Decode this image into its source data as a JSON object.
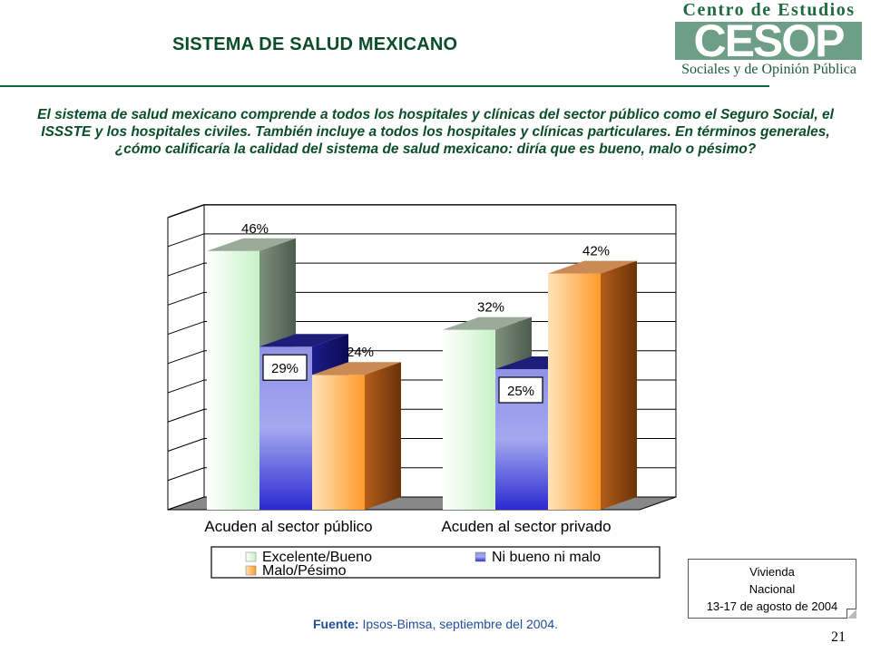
{
  "header": {
    "title": "SISTEMA DE SALUD MEXICANO",
    "logo": {
      "top": "Centro de Estudios",
      "mid": "CESOP",
      "bottom": "Sociales y de Opinión Pública"
    }
  },
  "question": "El sistema de salud mexicano comprende a todos los hospitales y clínicas del sector público como el Seguro Social, el ISSSTE y los hospitales civiles. También incluye a todos los hospitales y clínicas particulares. En términos generales, ¿cómo calificaría la calidad del sistema de salud mexicano: diría que es bueno, malo o pésimo?",
  "chart_data": {
    "type": "bar",
    "categories": [
      "Acuden al sector público",
      "Acuden al sector privado"
    ],
    "series": [
      {
        "name": "Excelente/Bueno",
        "values": [
          46,
          32
        ],
        "labels": [
          "46%",
          "32%"
        ],
        "color": "#ccf5cc"
      },
      {
        "name": "Ni bueno ni malo",
        "values": [
          29,
          25
        ],
        "labels": [
          "29%",
          "25%"
        ],
        "color": "#4a4ae0"
      },
      {
        "name": "Malo/Pésimo",
        "values": [
          24,
          42
        ],
        "labels": [
          "24%",
          "42%"
        ],
        "color": "#ff9a3c"
      }
    ],
    "ylim": [
      0,
      50
    ],
    "grid": true,
    "legend_placement": "bottom"
  },
  "info_box": {
    "line1": "Vivienda",
    "line2": "Nacional",
    "line3": "13-17 de agosto de 2004"
  },
  "footer": {
    "source_label": "Fuente:",
    "source_text": " Ipsos-Bimsa, septiembre del 2004.",
    "page_number": "21"
  }
}
